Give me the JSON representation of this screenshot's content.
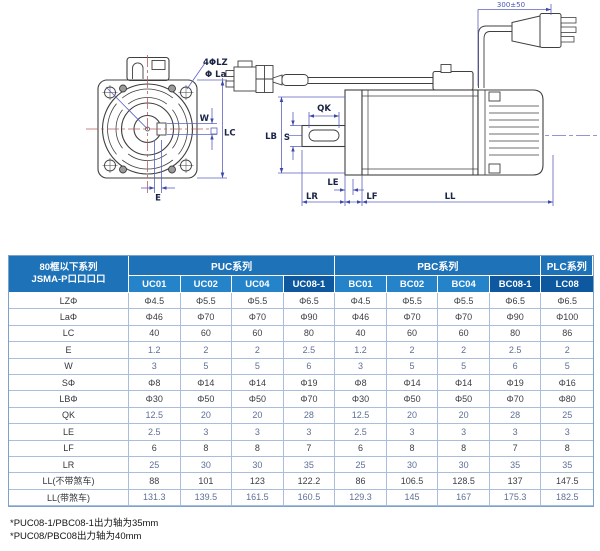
{
  "drawing": {
    "labels": {
      "holes": "4ΦLZ",
      "la": "Φ La",
      "w": "W",
      "lc": "LC",
      "e": "E",
      "qk": "QK",
      "lb": "LB",
      "s": "S",
      "le": "LE",
      "lr": "LR",
      "lf": "LF",
      "ll": "LL",
      "cable": "300±50"
    },
    "colors": {
      "outline": "#3f3f3f",
      "dimension": "#5a63bd",
      "dimension_label": "#1b2447",
      "centerline_red": "#b55e5e",
      "centerline_blue": "#6b74c4"
    }
  },
  "table": {
    "corner_header": [
      "80框以下系列",
      "JSMA-P口口口口"
    ],
    "groups": [
      {
        "label": "PUC系列",
        "span": 4
      },
      {
        "label": "PBC系列",
        "span": 4
      },
      {
        "label": "PLC系列",
        "span": 1
      }
    ],
    "columns": [
      {
        "label": "UC01",
        "highlight": false
      },
      {
        "label": "UC02",
        "highlight": false
      },
      {
        "label": "UC04",
        "highlight": false
      },
      {
        "label": "UC08-1",
        "highlight": true
      },
      {
        "label": "BC01",
        "highlight": false
      },
      {
        "label": "BC02",
        "highlight": false
      },
      {
        "label": "BC04",
        "highlight": false
      },
      {
        "label": "BC08-1",
        "highlight": true
      },
      {
        "label": "LC08",
        "highlight": true
      }
    ],
    "rows": [
      {
        "label": "LZΦ",
        "tone": "dark",
        "values": [
          "Φ4.5",
          "Φ5.5",
          "Φ5.5",
          "Φ6.5",
          "Φ4.5",
          "Φ5.5",
          "Φ5.5",
          "Φ6.5",
          "Φ6.5"
        ]
      },
      {
        "label": "LaΦ",
        "tone": "dark",
        "values": [
          "Φ46",
          "Φ70",
          "Φ70",
          "Φ90",
          "Φ46",
          "Φ70",
          "Φ70",
          "Φ90",
          "Φ100"
        ]
      },
      {
        "label": "LC",
        "tone": "dark",
        "values": [
          "40",
          "60",
          "60",
          "80",
          "40",
          "60",
          "60",
          "80",
          "86"
        ]
      },
      {
        "label": "E",
        "tone": "blue",
        "values": [
          "1.2",
          "2",
          "2",
          "2.5",
          "1.2",
          "2",
          "2",
          "2.5",
          "2"
        ]
      },
      {
        "label": "W",
        "tone": "blue",
        "values": [
          "3",
          "5",
          "5",
          "6",
          "3",
          "5",
          "5",
          "6",
          "5"
        ]
      },
      {
        "label": "SΦ",
        "tone": "dark",
        "values": [
          "Φ8",
          "Φ14",
          "Φ14",
          "Φ19",
          "Φ8",
          "Φ14",
          "Φ14",
          "Φ19",
          "Φ16"
        ]
      },
      {
        "label": "LBΦ",
        "tone": "dark",
        "values": [
          "Φ30",
          "Φ50",
          "Φ50",
          "Φ70",
          "Φ30",
          "Φ50",
          "Φ50",
          "Φ70",
          "Φ80"
        ]
      },
      {
        "label": "QK",
        "tone": "blue",
        "values": [
          "12.5",
          "20",
          "20",
          "28",
          "12.5",
          "20",
          "20",
          "28",
          "25"
        ]
      },
      {
        "label": "LE",
        "tone": "blue",
        "values": [
          "2.5",
          "3",
          "3",
          "3",
          "2.5",
          "3",
          "3",
          "3",
          "3"
        ]
      },
      {
        "label": "LF",
        "tone": "dark",
        "values": [
          "6",
          "8",
          "8",
          "7",
          "6",
          "8",
          "8",
          "7",
          "8"
        ]
      },
      {
        "label": "LR",
        "tone": "blue",
        "values": [
          "25",
          "30",
          "30",
          "35",
          "25",
          "30",
          "30",
          "35",
          "35"
        ]
      },
      {
        "label": "LL(不带煞车)",
        "tone": "dark",
        "values": [
          "88",
          "101",
          "123",
          "122.2",
          "86",
          "106.5",
          "128.5",
          "137",
          "147.5"
        ]
      },
      {
        "label": "LL(带煞车)",
        "tone": "blue",
        "values": [
          "131.3",
          "139.5",
          "161.5",
          "160.5",
          "129.3",
          "145",
          "167",
          "175.3",
          "182.5"
        ]
      }
    ]
  },
  "footnotes": [
    "*PUC08-1/PBC08-1出力轴为35mm",
    "*PUC08/PBC08出力轴为40mm"
  ]
}
